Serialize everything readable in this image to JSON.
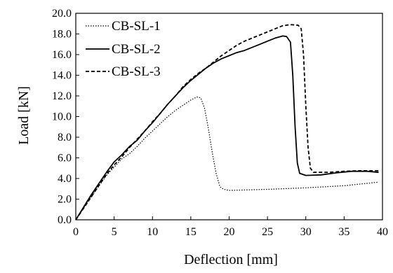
{
  "chart_data": {
    "type": "line",
    "title": "",
    "xlabel": "Deflection [mm]",
    "ylabel": "Load [kN]",
    "xlim": [
      0,
      40
    ],
    "ylim": [
      0,
      20
    ],
    "x_ticks": [
      "0",
      "5",
      "10",
      "15",
      "20",
      "25",
      "30",
      "35",
      "40"
    ],
    "y_ticks": [
      "0.0",
      "2.0",
      "4.0",
      "6.0",
      "8.0",
      "10.0",
      "12.0",
      "14.0",
      "16.0",
      "18.0",
      "20.0"
    ],
    "grid": false,
    "legend_position": "top-left",
    "series": [
      {
        "name": "CB-SL-1",
        "style": "dotted",
        "points": [
          [
            0,
            0
          ],
          [
            2,
            2.2
          ],
          [
            4,
            4.3
          ],
          [
            5,
            5.1
          ],
          [
            6,
            5.9
          ],
          [
            7,
            6.4
          ],
          [
            8,
            7.1
          ],
          [
            9,
            7.9
          ],
          [
            10,
            8.6
          ],
          [
            11,
            9.3
          ],
          [
            12,
            10.0
          ],
          [
            13,
            10.6
          ],
          [
            14,
            11.1
          ],
          [
            15,
            11.6
          ],
          [
            15.8,
            11.9
          ],
          [
            16.3,
            11.8
          ],
          [
            16.8,
            10.8
          ],
          [
            17.3,
            8.8
          ],
          [
            17.8,
            6.5
          ],
          [
            18.3,
            4.5
          ],
          [
            18.8,
            3.2
          ],
          [
            19.3,
            2.95
          ],
          [
            20,
            2.85
          ],
          [
            25,
            2.95
          ],
          [
            30,
            3.1
          ],
          [
            35,
            3.3
          ],
          [
            39.5,
            3.65
          ]
        ]
      },
      {
        "name": "CB-SL-2",
        "style": "solid",
        "points": [
          [
            0,
            0
          ],
          [
            1,
            1.2
          ],
          [
            2,
            2.4
          ],
          [
            3,
            3.5
          ],
          [
            4,
            4.6
          ],
          [
            5,
            5.6
          ],
          [
            6,
            6.3
          ],
          [
            7,
            7.1
          ],
          [
            8,
            7.7
          ],
          [
            9,
            8.6
          ],
          [
            10,
            9.4
          ],
          [
            11,
            10.3
          ],
          [
            12,
            11.2
          ],
          [
            13,
            12.0
          ],
          [
            14,
            12.8
          ],
          [
            15,
            13.5
          ],
          [
            16,
            14.1
          ],
          [
            17,
            14.7
          ],
          [
            18,
            15.2
          ],
          [
            19,
            15.6
          ],
          [
            20,
            15.9
          ],
          [
            21,
            16.2
          ],
          [
            22,
            16.4
          ],
          [
            23,
            16.7
          ],
          [
            24,
            17.0
          ],
          [
            25,
            17.3
          ],
          [
            26,
            17.6
          ],
          [
            27,
            17.8
          ],
          [
            27.5,
            17.75
          ],
          [
            28,
            17.2
          ],
          [
            28.3,
            14.0
          ],
          [
            28.6,
            9.0
          ],
          [
            28.9,
            5.5
          ],
          [
            29.2,
            4.5
          ],
          [
            30,
            4.3
          ],
          [
            32,
            4.35
          ],
          [
            34,
            4.55
          ],
          [
            36,
            4.7
          ],
          [
            38,
            4.7
          ],
          [
            39.5,
            4.6
          ]
        ]
      },
      {
        "name": "CB-SL-3",
        "style": "dashed",
        "points": [
          [
            0,
            0
          ],
          [
            1,
            1.1
          ],
          [
            2,
            2.2
          ],
          [
            3,
            3.3
          ],
          [
            4,
            4.4
          ],
          [
            5,
            5.3
          ],
          [
            6,
            6.1
          ],
          [
            7,
            7.0
          ],
          [
            8,
            7.8
          ],
          [
            9,
            8.6
          ],
          [
            10,
            9.5
          ],
          [
            11,
            10.3
          ],
          [
            12,
            11.2
          ],
          [
            13,
            12.0
          ],
          [
            14,
            12.9
          ],
          [
            15,
            13.6
          ],
          [
            16,
            14.2
          ],
          [
            17,
            14.7
          ],
          [
            18,
            15.3
          ],
          [
            19,
            15.9
          ],
          [
            20,
            16.4
          ],
          [
            21,
            16.9
          ],
          [
            22,
            17.3
          ],
          [
            23,
            17.6
          ],
          [
            24,
            17.9
          ],
          [
            25,
            18.2
          ],
          [
            26,
            18.5
          ],
          [
            27,
            18.8
          ],
          [
            28,
            18.9
          ],
          [
            29,
            18.85
          ],
          [
            29.4,
            18.5
          ],
          [
            29.7,
            16.0
          ],
          [
            30,
            11.0
          ],
          [
            30.3,
            7.0
          ],
          [
            30.6,
            5.0
          ],
          [
            31,
            4.6
          ],
          [
            33,
            4.6
          ],
          [
            35,
            4.7
          ],
          [
            37,
            4.75
          ],
          [
            39.5,
            4.75
          ]
        ]
      }
    ]
  }
}
